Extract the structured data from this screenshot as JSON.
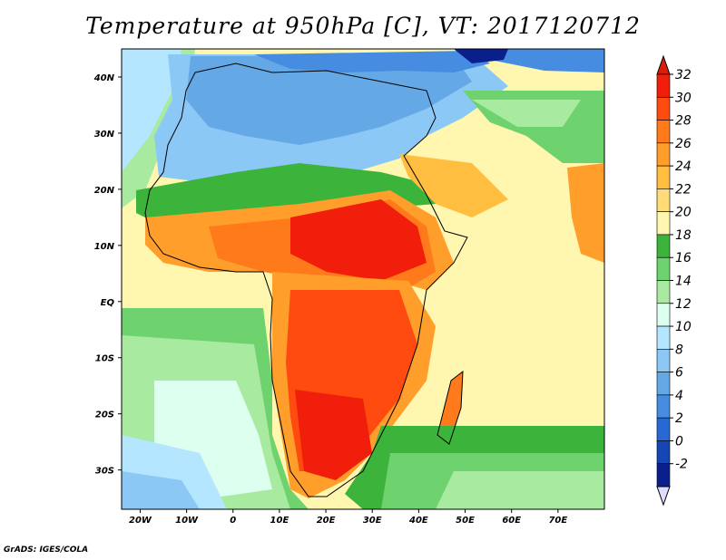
{
  "title": "Temperature at 950hPa [C], VT: 2017120712",
  "credit": "GrADS: IGES/COLA",
  "map": {
    "lon_range": [
      -24,
      80
    ],
    "lat_range": [
      -37,
      45
    ],
    "lon_ticks": [
      {
        "value": -20,
        "label": "20W"
      },
      {
        "value": -10,
        "label": "10W"
      },
      {
        "value": 0,
        "label": "0"
      },
      {
        "value": 10,
        "label": "10E"
      },
      {
        "value": 20,
        "label": "20E"
      },
      {
        "value": 30,
        "label": "30E"
      },
      {
        "value": 40,
        "label": "40E"
      },
      {
        "value": 50,
        "label": "50E"
      },
      {
        "value": 60,
        "label": "60E"
      },
      {
        "value": 70,
        "label": "70E"
      }
    ],
    "lat_ticks": [
      {
        "value": 40,
        "label": "40N"
      },
      {
        "value": 30,
        "label": "30N"
      },
      {
        "value": 20,
        "label": "20N"
      },
      {
        "value": 10,
        "label": "10N"
      },
      {
        "value": 0,
        "label": "EQ"
      },
      {
        "value": -10,
        "label": "10S"
      },
      {
        "value": -20,
        "label": "20S"
      },
      {
        "value": -30,
        "label": "30S"
      }
    ]
  },
  "colorbar": {
    "labels": [
      "32",
      "30",
      "28",
      "26",
      "24",
      "22",
      "20",
      "18",
      "16",
      "14",
      "12",
      "10",
      "8",
      "6",
      "4",
      "2",
      "0",
      "-2"
    ],
    "colors": [
      "#f01e0a",
      "#ff4a10",
      "#ff7a1a",
      "#ff9e2a",
      "#ffbe40",
      "#ffdc78",
      "#fff6b0",
      "#3cb43c",
      "#6ed26e",
      "#a8eba0",
      "#dcfff0",
      "#b4e6ff",
      "#8cc8f5",
      "#64a8e6",
      "#468ce0",
      "#2868d2",
      "#1446b4",
      "#0a1e8c"
    ],
    "top_color": "#d81e06",
    "bottom_color": "#dcdcff"
  }
}
